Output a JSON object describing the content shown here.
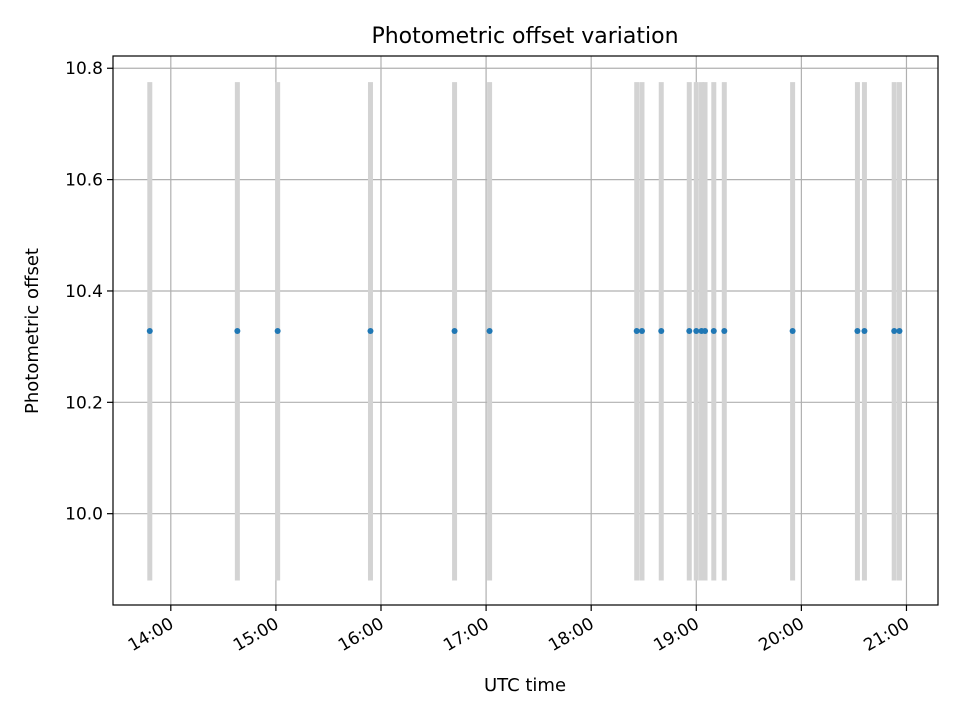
{
  "chart_data": {
    "type": "scatter",
    "title": "Photometric offset variation",
    "xlabel": "UTC time",
    "ylabel": "Photometric offset",
    "x_unit": "UTC time (hours)",
    "xlim": [
      "13:27",
      "21:18"
    ],
    "ylim": [
      9.836,
      10.822
    ],
    "grid": true,
    "marker_color": "#1f77b4",
    "error_bar_color": "#d3d3d3",
    "x_ticks": [
      "14:00",
      "15:00",
      "16:00",
      "17:00",
      "18:00",
      "19:00",
      "20:00",
      "21:00"
    ],
    "y_ticks": [
      "10.0",
      "10.2",
      "10.4",
      "10.6",
      "10.8"
    ],
    "points": [
      {
        "time": "13:48",
        "y": 10.328,
        "err_low": 9.88,
        "err_high": 10.775
      },
      {
        "time": "14:38",
        "y": 10.328,
        "err_low": 9.88,
        "err_high": 10.775
      },
      {
        "time": "15:01",
        "y": 10.328,
        "err_low": 9.88,
        "err_high": 10.775
      },
      {
        "time": "15:54",
        "y": 10.328,
        "err_low": 9.88,
        "err_high": 10.775
      },
      {
        "time": "16:42",
        "y": 10.328,
        "err_low": 9.88,
        "err_high": 10.775
      },
      {
        "time": "17:02",
        "y": 10.328,
        "err_low": 9.88,
        "err_high": 10.775
      },
      {
        "time": "18:26",
        "y": 10.328,
        "err_low": 9.88,
        "err_high": 10.775
      },
      {
        "time": "18:29",
        "y": 10.328,
        "err_low": 9.88,
        "err_high": 10.775
      },
      {
        "time": "18:40",
        "y": 10.328,
        "err_low": 9.88,
        "err_high": 10.775
      },
      {
        "time": "18:56",
        "y": 10.328,
        "err_low": 9.88,
        "err_high": 10.775
      },
      {
        "time": "19:00",
        "y": 10.328,
        "err_low": 9.88,
        "err_high": 10.775
      },
      {
        "time": "19:03",
        "y": 10.328,
        "err_low": 9.88,
        "err_high": 10.775
      },
      {
        "time": "19:05",
        "y": 10.328,
        "err_low": 9.88,
        "err_high": 10.775
      },
      {
        "time": "19:10",
        "y": 10.328,
        "err_low": 9.88,
        "err_high": 10.775
      },
      {
        "time": "19:16",
        "y": 10.328,
        "err_low": 9.88,
        "err_high": 10.775
      },
      {
        "time": "19:55",
        "y": 10.328,
        "err_low": 9.88,
        "err_high": 10.775
      },
      {
        "time": "20:32",
        "y": 10.328,
        "err_low": 9.88,
        "err_high": 10.775
      },
      {
        "time": "20:36",
        "y": 10.328,
        "err_low": 9.88,
        "err_high": 10.775
      },
      {
        "time": "20:53",
        "y": 10.328,
        "err_low": 9.88,
        "err_high": 10.775
      },
      {
        "time": "20:56",
        "y": 10.328,
        "err_low": 9.88,
        "err_high": 10.775
      }
    ]
  }
}
